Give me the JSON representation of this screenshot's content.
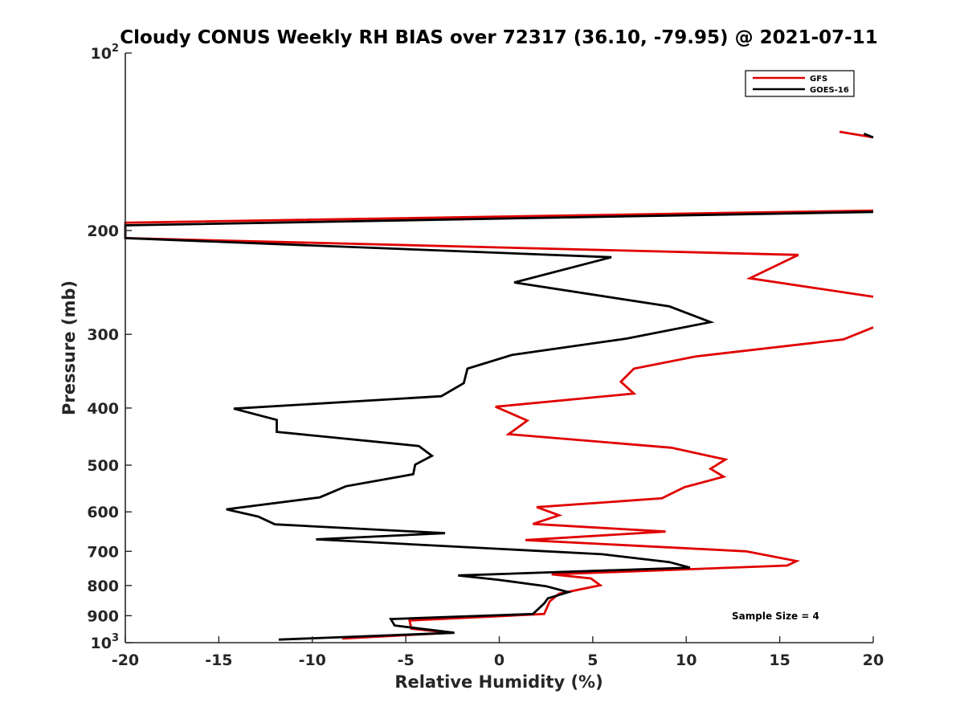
{
  "chart_data": {
    "type": "line",
    "title": "Cloudy CONUS Weekly RH BIAS over 72317 (36.10, -79.95) @ 2021-07-11",
    "xlabel": "Relative Humidity (%)",
    "ylabel": "Pressure (mb)",
    "xlim": [
      -20,
      20
    ],
    "ylim": [
      100,
      1000
    ],
    "y_scale": "log",
    "y_reversed": true,
    "grid": false,
    "legend_position": "top-right",
    "x_ticks": [
      "-20",
      "-15",
      "-10",
      "-5",
      "0",
      "5",
      "10",
      "15",
      "20"
    ],
    "x_tick_values": [
      -20,
      -15,
      -10,
      -5,
      0,
      5,
      10,
      15,
      20
    ],
    "y_ticks": [
      {
        "value": 100,
        "base": "10",
        "exp": "2"
      },
      {
        "value": 200,
        "label": "200"
      },
      {
        "value": 300,
        "label": "300"
      },
      {
        "value": 400,
        "label": "400"
      },
      {
        "value": 500,
        "label": "500"
      },
      {
        "value": 600,
        "label": "600"
      },
      {
        "value": 700,
        "label": "700"
      },
      {
        "value": 800,
        "label": "800"
      },
      {
        "value": 900,
        "label": "900"
      },
      {
        "value": 1000,
        "base": "10",
        "exp": "3"
      }
    ],
    "annotation": "Sample Size = 4",
    "series": [
      {
        "name": "GFS",
        "color": "#e00000",
        "points": [
          [
            18.2,
            136
          ],
          [
            20.5,
            139
          ],
          null,
          [
            20.5,
            185
          ],
          [
            -20.2,
            194
          ],
          [
            -20.3,
            206
          ],
          [
            16.0,
            220
          ],
          [
            13.4,
            241
          ],
          [
            20.5,
            259
          ],
          null,
          [
            20.5,
            292
          ],
          [
            18.4,
            306
          ],
          [
            10.5,
            327
          ],
          [
            7.2,
            343
          ],
          [
            6.5,
            361
          ],
          [
            7.2,
            378
          ],
          [
            -0.2,
            398
          ],
          [
            1.5,
            420
          ],
          [
            0.5,
            443
          ],
          [
            9.2,
            467
          ],
          [
            12.1,
            489
          ],
          [
            11.3,
            507
          ],
          [
            12.0,
            523
          ],
          [
            9.9,
            545
          ],
          [
            8.7,
            569
          ],
          [
            2.0,
            589
          ],
          [
            3.2,
            608
          ],
          [
            1.8,
            629
          ],
          [
            8.9,
            648
          ],
          [
            1.4,
            670
          ],
          [
            13.2,
            700
          ],
          [
            15.9,
            727
          ],
          [
            15.4,
            740
          ],
          [
            2.8,
            766
          ],
          [
            4.9,
            778
          ],
          [
            5.4,
            799
          ],
          [
            3.2,
            826
          ],
          [
            2.7,
            851
          ],
          [
            2.4,
            894
          ],
          [
            -4.8,
            917
          ],
          [
            -4.7,
            947
          ],
          [
            -2.6,
            962
          ],
          [
            -8.4,
            984
          ]
        ]
      },
      {
        "name": "GOES-16",
        "color": "#000000",
        "points": [
          [
            19.5,
            137
          ],
          [
            20.5,
            139
          ],
          null,
          [
            20.5,
            186
          ],
          [
            -20.2,
            196
          ],
          [
            -20.3,
            206
          ],
          [
            6.0,
            222
          ],
          [
            0.8,
            245
          ],
          [
            9.1,
            269
          ],
          [
            11.3,
            286
          ],
          [
            6.8,
            305
          ],
          [
            0.7,
            325
          ],
          [
            -1.7,
            343
          ],
          [
            -1.9,
            363
          ],
          [
            -3.1,
            382
          ],
          [
            -14.2,
            401
          ],
          [
            -11.9,
            419
          ],
          [
            -11.9,
            439
          ],
          [
            -4.3,
            464
          ],
          [
            -3.6,
            482
          ],
          [
            -4.5,
            499
          ],
          [
            -4.6,
            518
          ],
          [
            -8.2,
            543
          ],
          [
            -9.6,
            567
          ],
          [
            -14.6,
            594
          ],
          [
            -12.9,
            611
          ],
          [
            -12.0,
            630
          ],
          [
            -2.9,
            652
          ],
          [
            -9.8,
            668
          ],
          [
            5.5,
            708
          ],
          [
            9.1,
            730
          ],
          [
            10.2,
            746
          ],
          [
            -2.2,
            769
          ],
          [
            -0.1,
            782
          ],
          [
            2.5,
            802
          ],
          [
            3.7,
            821
          ],
          [
            2.6,
            841
          ],
          [
            2.4,
            858
          ],
          [
            1.8,
            894
          ],
          [
            -5.8,
            912
          ],
          [
            -5.6,
            935
          ],
          [
            -2.4,
            962
          ],
          [
            -11.8,
            988
          ]
        ]
      }
    ]
  }
}
